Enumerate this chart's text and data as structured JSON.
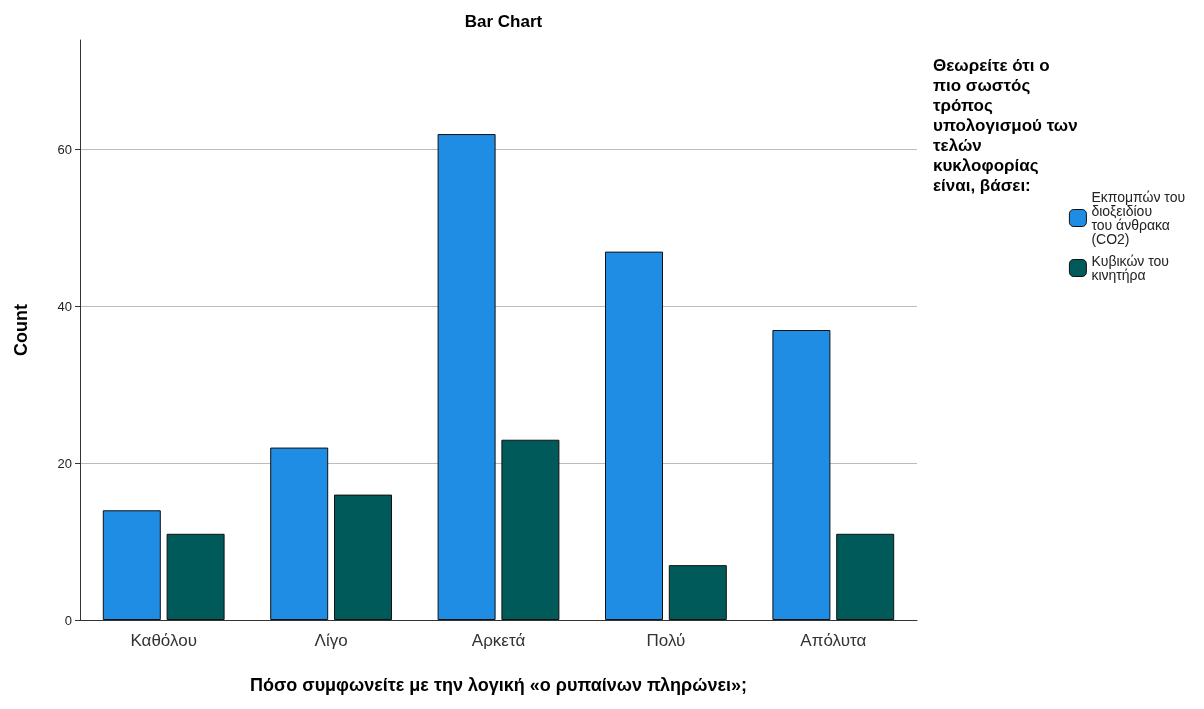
{
  "chart_data": {
    "type": "bar",
    "title": "Bar Chart",
    "xlabel": "Πόσο συμφωνείτε με την λογική «ο ρυπαίνων πληρώνει»;",
    "ylabel": "Count",
    "legend_title": "Θεωρείτε ότι ο πιο σωστός τρόπος υπολογισμού των τελών κυκλοφορίας είναι, βάσει:",
    "categories": [
      "Καθόλου",
      "Λίγο",
      "Αρκετά",
      "Πολύ",
      "Απόλυτα"
    ],
    "series": [
      {
        "name": "Εκπομπών του διοξειδίου του άνθρακα (CO2)",
        "color": "#1e8de3",
        "values": [
          14,
          22,
          62,
          47,
          37
        ]
      },
      {
        "name": "Κυβικών του κινητήρα",
        "color": "#005a5a",
        "values": [
          11,
          16,
          23,
          7,
          11
        ]
      }
    ],
    "ylim": [
      0,
      74
    ],
    "yticks": [
      0,
      20,
      40,
      60
    ],
    "grid": "y",
    "legend": "right"
  }
}
